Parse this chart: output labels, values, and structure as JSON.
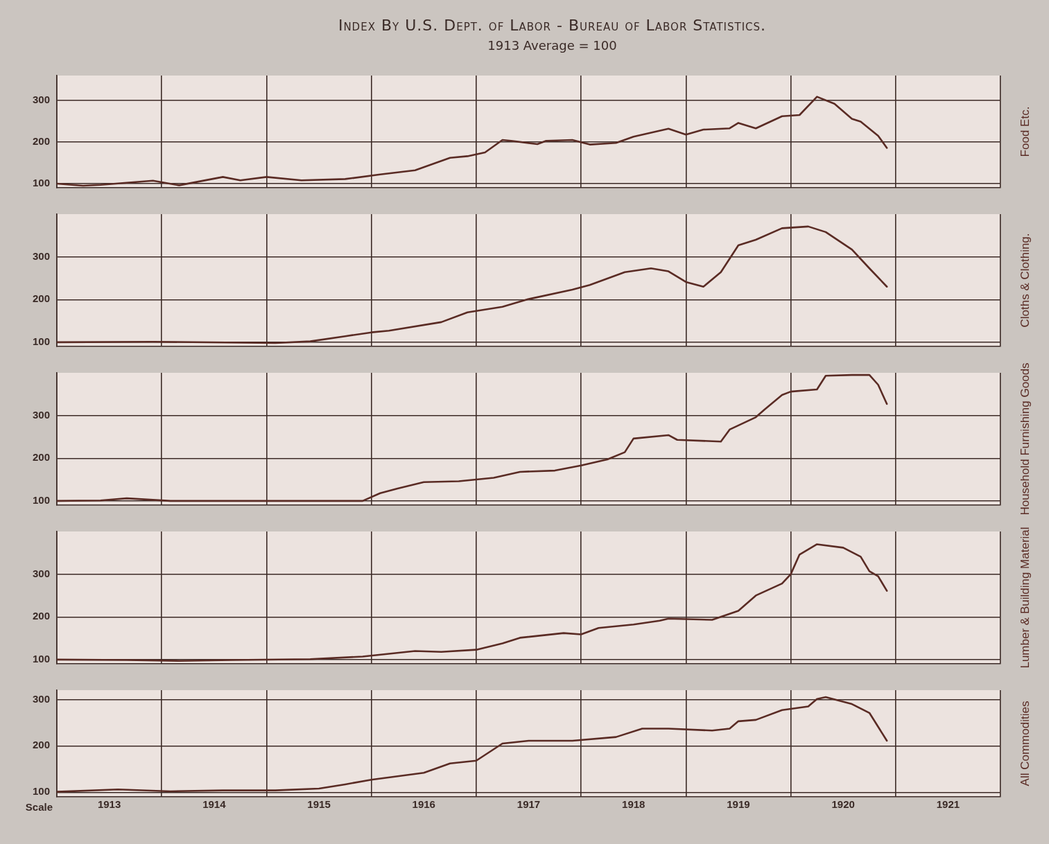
{
  "chart_data": [
    {
      "type": "line",
      "title": "Index By U.S. Dept. of Labor - Bureau of Labor Statistics.",
      "subtitle": "1913 Average = 100",
      "series": [
        {
          "name": "Food Etc.",
          "color": "#5a2b24",
          "x": [
            "1913-01",
            "1913-04",
            "1913-06",
            "1913-12",
            "1914-03",
            "1914-08",
            "1914-10",
            "1915-01",
            "1915-05",
            "1915-10",
            "1916-02",
            "1916-06",
            "1916-10",
            "1916-12",
            "1917-02",
            "1917-04",
            "1917-05",
            "1917-08",
            "1917-09",
            "1917-12",
            "1918-02",
            "1918-05",
            "1918-07",
            "1918-11",
            "1919-01",
            "1919-03",
            "1919-06",
            "1919-07",
            "1919-09",
            "1919-12",
            "1920-02",
            "1920-04",
            "1920-06",
            "1920-08",
            "1920-09",
            "1920-11",
            "1920-12"
          ],
          "values": [
            100,
            95,
            97,
            107,
            96,
            116,
            108,
            116,
            108,
            111,
            122,
            132,
            162,
            166,
            175,
            205,
            203,
            195,
            203,
            205,
            194,
            198,
            213,
            232,
            218,
            230,
            233,
            246,
            233,
            262,
            265,
            309,
            292,
            256,
            249,
            215,
            186
          ]
        }
      ],
      "xlim": [
        "1913-01",
        "1922-01"
      ],
      "xticks": [
        {
          "value": "1913-01",
          "label": null
        },
        {
          "value": "1914-01",
          "label": null
        },
        {
          "value": "1915-01",
          "label": null
        },
        {
          "value": "1916-01",
          "label": null
        },
        {
          "value": "1917-01",
          "label": null
        },
        {
          "value": "1918-01",
          "label": null
        },
        {
          "value": "1919-01",
          "label": null
        },
        {
          "value": "1920-01",
          "label": null
        },
        {
          "value": "1921-01",
          "label": null
        },
        {
          "value": "1922-01",
          "label": null
        }
      ],
      "ylim": [
        90,
        360
      ],
      "yticks": [
        100,
        200,
        300
      ],
      "grid": true,
      "tick_labels": "y",
      "marker": "none"
    },
    {
      "type": "line",
      "series": [
        {
          "name": "Cloths & Clothing.",
          "color": "#5a2b24",
          "x": [
            "1913-01",
            "1913-12",
            "1915-02",
            "1915-06",
            "1915-10",
            "1916-01",
            "1916-03",
            "1916-09",
            "1916-12",
            "1917-04",
            "1917-07",
            "1917-12",
            "1918-02",
            "1918-06",
            "1918-09",
            "1918-11",
            "1919-01",
            "1919-03",
            "1919-05",
            "1919-07",
            "1919-09",
            "1919-12",
            "1920-03",
            "1920-05",
            "1920-08",
            "1920-10",
            "1920-12"
          ],
          "values": [
            100,
            101,
            98,
            102,
            114,
            123,
            127,
            147,
            170,
            183,
            201,
            223,
            234,
            264,
            273,
            266,
            241,
            230,
            264,
            327,
            340,
            367,
            371,
            358,
            317,
            273,
            230
          ]
        }
      ],
      "xlim": [
        "1913-01",
        "1922-01"
      ],
      "xticks": [
        {
          "value": "1913-01",
          "label": null
        },
        {
          "value": "1914-01",
          "label": null
        },
        {
          "value": "1915-01",
          "label": null
        },
        {
          "value": "1916-01",
          "label": null
        },
        {
          "value": "1917-01",
          "label": null
        },
        {
          "value": "1918-01",
          "label": null
        },
        {
          "value": "1919-01",
          "label": null
        },
        {
          "value": "1920-01",
          "label": null
        },
        {
          "value": "1921-01",
          "label": null
        },
        {
          "value": "1922-01",
          "label": null
        }
      ],
      "ylim": [
        90,
        400
      ],
      "yticks": [
        100,
        200,
        300
      ],
      "grid": true,
      "tick_labels": "y",
      "marker": "none"
    },
    {
      "type": "line",
      "series": [
        {
          "name": "Household Furnishing Goods",
          "color": "#5a2b24",
          "x": [
            "1913-01",
            "1913-06",
            "1913-09",
            "1914-02",
            "1915-02",
            "1915-12",
            "1916-02",
            "1916-04",
            "1916-07",
            "1916-11",
            "1917-03",
            "1917-06",
            "1917-10",
            "1918-01",
            "1918-04",
            "1918-06",
            "1918-07",
            "1918-11",
            "1918-12",
            "1919-05",
            "1919-06",
            "1919-09",
            "1919-10",
            "1919-12",
            "1920-01",
            "1920-04",
            "1920-05",
            "1920-08",
            "1920-10",
            "1920-11",
            "1920-12"
          ],
          "values": [
            100,
            101,
            106,
            100,
            100,
            100,
            118,
            129,
            144,
            146,
            154,
            168,
            171,
            183,
            197,
            214,
            246,
            254,
            243,
            239,
            267,
            296,
            314,
            348,
            356,
            361,
            393,
            395,
            395,
            372,
            327
          ]
        }
      ],
      "xlim": [
        "1913-01",
        "1922-01"
      ],
      "xticks": [
        {
          "value": "1913-01",
          "label": null
        },
        {
          "value": "1914-01",
          "label": null
        },
        {
          "value": "1915-01",
          "label": null
        },
        {
          "value": "1916-01",
          "label": null
        },
        {
          "value": "1917-01",
          "label": null
        },
        {
          "value": "1918-01",
          "label": null
        },
        {
          "value": "1919-01",
          "label": null
        },
        {
          "value": "1920-01",
          "label": null
        },
        {
          "value": "1921-01",
          "label": null
        },
        {
          "value": "1922-01",
          "label": null
        }
      ],
      "ylim": [
        90,
        400
      ],
      "yticks": [
        100,
        200,
        300
      ],
      "grid": true,
      "tick_labels": "y",
      "marker": "none"
    },
    {
      "type": "line",
      "series": [
        {
          "name": "Lumber & Building Material",
          "color": "#5a2b24",
          "x": [
            "1913-01",
            "1913-09",
            "1914-03",
            "1914-09",
            "1915-06",
            "1915-12",
            "1916-06",
            "1916-09",
            "1917-01",
            "1917-04",
            "1917-06",
            "1917-11",
            "1918-01",
            "1918-03",
            "1918-07",
            "1918-10",
            "1918-11",
            "1919-04",
            "1919-07",
            "1919-09",
            "1919-12",
            "1920-01",
            "1920-02",
            "1920-04",
            "1920-07",
            "1920-09",
            "1920-10",
            "1920-11",
            "1920-12"
          ],
          "values": [
            100,
            99,
            97,
            99,
            101,
            107,
            120,
            118,
            123,
            138,
            151,
            162,
            159,
            174,
            182,
            191,
            196,
            193,
            214,
            250,
            278,
            300,
            346,
            370,
            362,
            341,
            307,
            295,
            261
          ]
        }
      ],
      "xlim": [
        "1913-01",
        "1922-01"
      ],
      "xticks": [
        {
          "value": "1913-01",
          "label": null
        },
        {
          "value": "1914-01",
          "label": null
        },
        {
          "value": "1915-01",
          "label": null
        },
        {
          "value": "1916-01",
          "label": null
        },
        {
          "value": "1917-01",
          "label": null
        },
        {
          "value": "1918-01",
          "label": null
        },
        {
          "value": "1919-01",
          "label": null
        },
        {
          "value": "1920-01",
          "label": null
        },
        {
          "value": "1921-01",
          "label": null
        },
        {
          "value": "1922-01",
          "label": null
        }
      ],
      "ylim": [
        90,
        400
      ],
      "yticks": [
        100,
        200,
        300
      ],
      "grid": true,
      "tick_labels": "y",
      "marker": "none"
    },
    {
      "type": "line",
      "annotations": [
        "Scale"
      ],
      "series": [
        {
          "name": "All Commodities",
          "color": "#5a2b24",
          "x": [
            "1913-01",
            "1913-08",
            "1914-02",
            "1914-08",
            "1915-02",
            "1915-07",
            "1915-10",
            "1916-01",
            "1916-07",
            "1916-10",
            "1917-01",
            "1917-04",
            "1917-07",
            "1917-12",
            "1918-05",
            "1918-08",
            "1918-11",
            "1919-04",
            "1919-06",
            "1919-07",
            "1919-09",
            "1919-12",
            "1920-03",
            "1920-04",
            "1920-05",
            "1920-08",
            "1920-10",
            "1920-12"
          ],
          "values": [
            101,
            106,
            102,
            104,
            104,
            108,
            117,
            127,
            142,
            162,
            168,
            205,
            211,
            211,
            219,
            237,
            237,
            233,
            237,
            253,
            256,
            277,
            285,
            301,
            305,
            290,
            271,
            211
          ]
        }
      ],
      "xlim": [
        "1913-01",
        "1922-01"
      ],
      "xticks": [
        {
          "value": "1913-01",
          "label": null
        },
        {
          "value": "1913-07",
          "label": "1913"
        },
        {
          "value": "1914-01",
          "label": null
        },
        {
          "value": "1914-07",
          "label": "1914"
        },
        {
          "value": "1915-01",
          "label": null
        },
        {
          "value": "1915-07",
          "label": "1915"
        },
        {
          "value": "1916-01",
          "label": null
        },
        {
          "value": "1916-07",
          "label": "1916"
        },
        {
          "value": "1917-01",
          "label": null
        },
        {
          "value": "1917-07",
          "label": "1917"
        },
        {
          "value": "1918-01",
          "label": null
        },
        {
          "value": "1918-07",
          "label": "1918"
        },
        {
          "value": "1919-01",
          "label": null
        },
        {
          "value": "1919-07",
          "label": "1919"
        },
        {
          "value": "1920-01",
          "label": null
        },
        {
          "value": "1920-07",
          "label": "1920"
        },
        {
          "value": "1921-01",
          "label": null
        },
        {
          "value": "1921-07",
          "label": "1921"
        },
        {
          "value": "1922-01",
          "label": null
        }
      ],
      "ylim": [
        90,
        320
      ],
      "yticks": [
        100,
        200,
        300
      ],
      "grid": true,
      "marker": "none"
    }
  ]
}
